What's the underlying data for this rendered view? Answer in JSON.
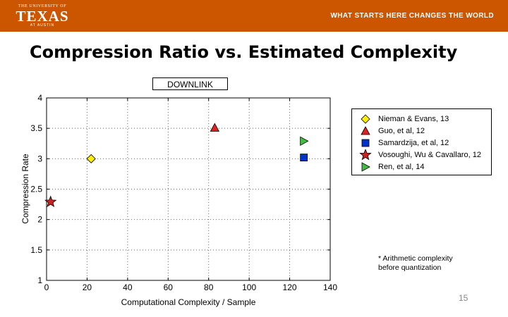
{
  "header": {
    "logo_top": "THE UNIVERSITY OF",
    "logo_main": "TEXAS",
    "logo_bottom": "AT AUSTIN",
    "tagline": "WHAT STARTS HERE CHANGES THE WORLD",
    "color": "#cc5500"
  },
  "slide": {
    "title": "Compression Ratio vs. Estimated Complexity",
    "page_number": "15",
    "footnote_line1": "* Arithmetic complexity",
    "footnote_line2": "before quantization"
  },
  "chart_data": {
    "type": "scatter",
    "title": "DOWNLINK",
    "xlabel": "Computational Complexity / Sample",
    "ylabel": "Compression Rate",
    "xlim": [
      0,
      140
    ],
    "ylim": [
      1,
      4
    ],
    "xticks": [
      "0",
      "20",
      "40",
      "60",
      "80",
      "100",
      "120",
      "140"
    ],
    "yticks": [
      "1",
      "1.5",
      "2",
      "2.5",
      "3",
      "3.5",
      "4"
    ],
    "grid": true,
    "legend_position": "top-right",
    "series": [
      {
        "name": "Nieman & Evans, 13",
        "marker": "diamond",
        "color": "#ffee00",
        "points": [
          {
            "x": 22,
            "y": 3.0
          }
        ]
      },
      {
        "name": "Guo, et al, 12",
        "marker": "triangle-up",
        "color": "#dd2222",
        "points": [
          {
            "x": 83,
            "y": 3.51
          }
        ]
      },
      {
        "name": "Samardzija, et al,  12",
        "marker": "square",
        "color": "#0033cc",
        "points": [
          {
            "x": 127,
            "y": 3.02
          }
        ]
      },
      {
        "name": "Vosoughi,  Wu & Cavallaro, 12",
        "marker": "star",
        "color": "#cc2222",
        "points": [
          {
            "x": 2,
            "y": 2.29
          }
        ]
      },
      {
        "name": "Ren, et al, 14",
        "marker": "triangle-right",
        "color": "#44bb44",
        "points": [
          {
            "x": 127,
            "y": 3.29
          }
        ]
      }
    ]
  }
}
